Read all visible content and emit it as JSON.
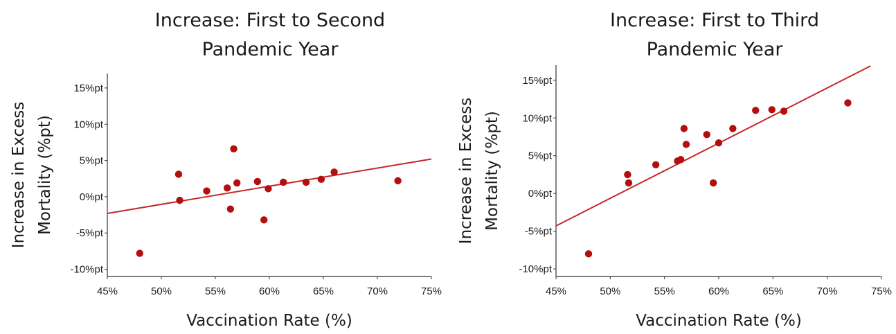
{
  "colors": {
    "marker": "#b30f0f",
    "trend": "#c62828",
    "axis": "#333333"
  },
  "chart_data": [
    {
      "type": "scatter",
      "title_lines": [
        "Increase: First to Second",
        "Pandemic Year"
      ],
      "xlabel": "Vaccination Rate (%)",
      "ylabel_lines": [
        "Increase in Excess",
        "Mortality (%pt)"
      ],
      "xlim": [
        45,
        75
      ],
      "ylim": [
        -11,
        17
      ],
      "xticks": [
        45,
        50,
        55,
        60,
        65,
        70,
        75
      ],
      "xtick_labels": [
        "45%",
        "50%",
        "55%",
        "60%",
        "65%",
        "70%",
        "75%"
      ],
      "yticks": [
        -10,
        -5,
        0,
        5,
        10,
        15
      ],
      "ytick_labels": [
        "-10%pt",
        "-5%pt",
        "0%pt",
        "5%pt",
        "10%pt",
        "15%pt"
      ],
      "points": [
        {
          "x": 48.0,
          "y": -7.8
        },
        {
          "x": 51.6,
          "y": 3.1
        },
        {
          "x": 51.7,
          "y": -0.5
        },
        {
          "x": 54.2,
          "y": 0.8
        },
        {
          "x": 56.1,
          "y": 1.2
        },
        {
          "x": 56.4,
          "y": -1.7
        },
        {
          "x": 56.7,
          "y": 6.6
        },
        {
          "x": 57.0,
          "y": 1.9
        },
        {
          "x": 58.9,
          "y": 2.1
        },
        {
          "x": 59.5,
          "y": -3.2
        },
        {
          "x": 59.9,
          "y": 1.1
        },
        {
          "x": 61.3,
          "y": 2.0
        },
        {
          "x": 63.4,
          "y": 2.0
        },
        {
          "x": 64.8,
          "y": 2.4
        },
        {
          "x": 66.0,
          "y": 3.4
        },
        {
          "x": 71.9,
          "y": 2.2
        }
      ],
      "trendline": {
        "x": [
          45,
          75
        ],
        "y": [
          -2.3,
          5.2
        ]
      }
    },
    {
      "type": "scatter",
      "title_lines": [
        "Increase: First to Third",
        "Pandemic Year"
      ],
      "xlabel": "Vaccination Rate (%)",
      "ylabel_lines": [
        "Increase in Excess",
        "Mortality (%pt)"
      ],
      "xlim": [
        45,
        75
      ],
      "ylim": [
        -11,
        17
      ],
      "xticks": [
        45,
        50,
        55,
        60,
        65,
        70,
        75
      ],
      "xtick_labels": [
        "45%",
        "50%",
        "55%",
        "60%",
        "65%",
        "70%",
        "75%"
      ],
      "yticks": [
        -10,
        -5,
        0,
        5,
        10,
        15
      ],
      "ytick_labels": [
        "-10%pt",
        "-5%pt",
        "0%pt",
        "5%pt",
        "10%pt",
        "15%pt"
      ],
      "points": [
        {
          "x": 48.0,
          "y": -8.0
        },
        {
          "x": 51.6,
          "y": 2.5
        },
        {
          "x": 51.7,
          "y": 1.4
        },
        {
          "x": 54.2,
          "y": 3.8
        },
        {
          "x": 56.2,
          "y": 4.3
        },
        {
          "x": 56.5,
          "y": 4.5
        },
        {
          "x": 56.8,
          "y": 8.6
        },
        {
          "x": 57.0,
          "y": 6.5
        },
        {
          "x": 58.9,
          "y": 7.8
        },
        {
          "x": 59.5,
          "y": 1.4
        },
        {
          "x": 60.0,
          "y": 6.7
        },
        {
          "x": 61.3,
          "y": 8.6
        },
        {
          "x": 63.4,
          "y": 11.0
        },
        {
          "x": 64.9,
          "y": 11.1
        },
        {
          "x": 66.0,
          "y": 10.9
        },
        {
          "x": 71.9,
          "y": 12.0
        }
      ],
      "trendline": {
        "x": [
          45,
          74
        ],
        "y": [
          -4.3,
          16.9
        ]
      }
    }
  ]
}
